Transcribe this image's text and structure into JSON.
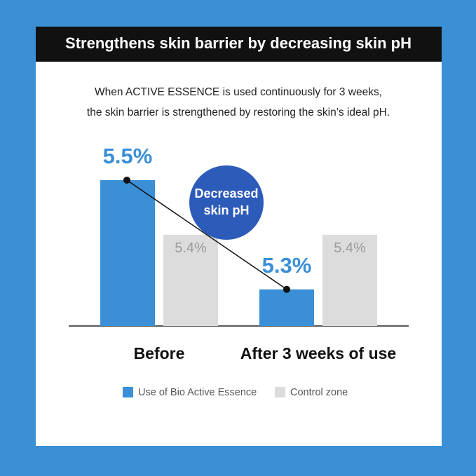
{
  "chart_data": {
    "type": "bar",
    "title": "Strengthens skin barrier by decreasing skin pH",
    "subtitle": [
      "When ACTIVE ESSENCE is used continuously for 3 weeks,",
      "the skin barrier is strengthened by restoring the skin’s ideal pH."
    ],
    "categories": [
      "Before",
      "After 3 weeks of use"
    ],
    "series": [
      {
        "name": "Use of Bio Active Essence",
        "color": "#3a8fd6",
        "values": [
          5.5,
          5.3
        ],
        "value_labels": [
          "5.5%",
          "5.3%"
        ]
      },
      {
        "name": "Control zone",
        "color": "#dcdcdc",
        "values": [
          5.4,
          5.4
        ],
        "value_labels": [
          "5.4%",
          "5.4%"
        ]
      }
    ],
    "annotation": [
      "Decreased",
      "skin pH"
    ],
    "annotation_color": "#2d5bb9",
    "ylim": [
      5.233,
      5.5
    ],
    "legend": "bottom"
  }
}
